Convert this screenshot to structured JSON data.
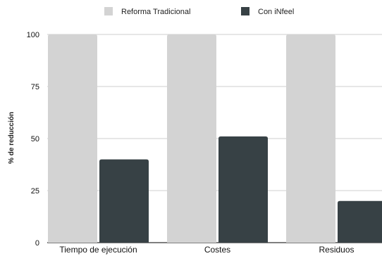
{
  "chart_data": {
    "type": "bar",
    "categories": [
      "Tiempo de ejecución",
      "Costes",
      "Residuos"
    ],
    "series": [
      {
        "name": "Reforma Tradicional",
        "values": [
          100,
          100,
          100
        ],
        "color": "#d3d3d3"
      },
      {
        "name": "Con iNfeel",
        "values": [
          40,
          51,
          20
        ],
        "color": "#374145"
      }
    ],
    "ylabel": "% de reducción",
    "xlabel": "",
    "ylim": [
      0,
      100
    ],
    "yticks": [
      0,
      25,
      50,
      75,
      100
    ],
    "grid": true,
    "legend": "top-center"
  }
}
